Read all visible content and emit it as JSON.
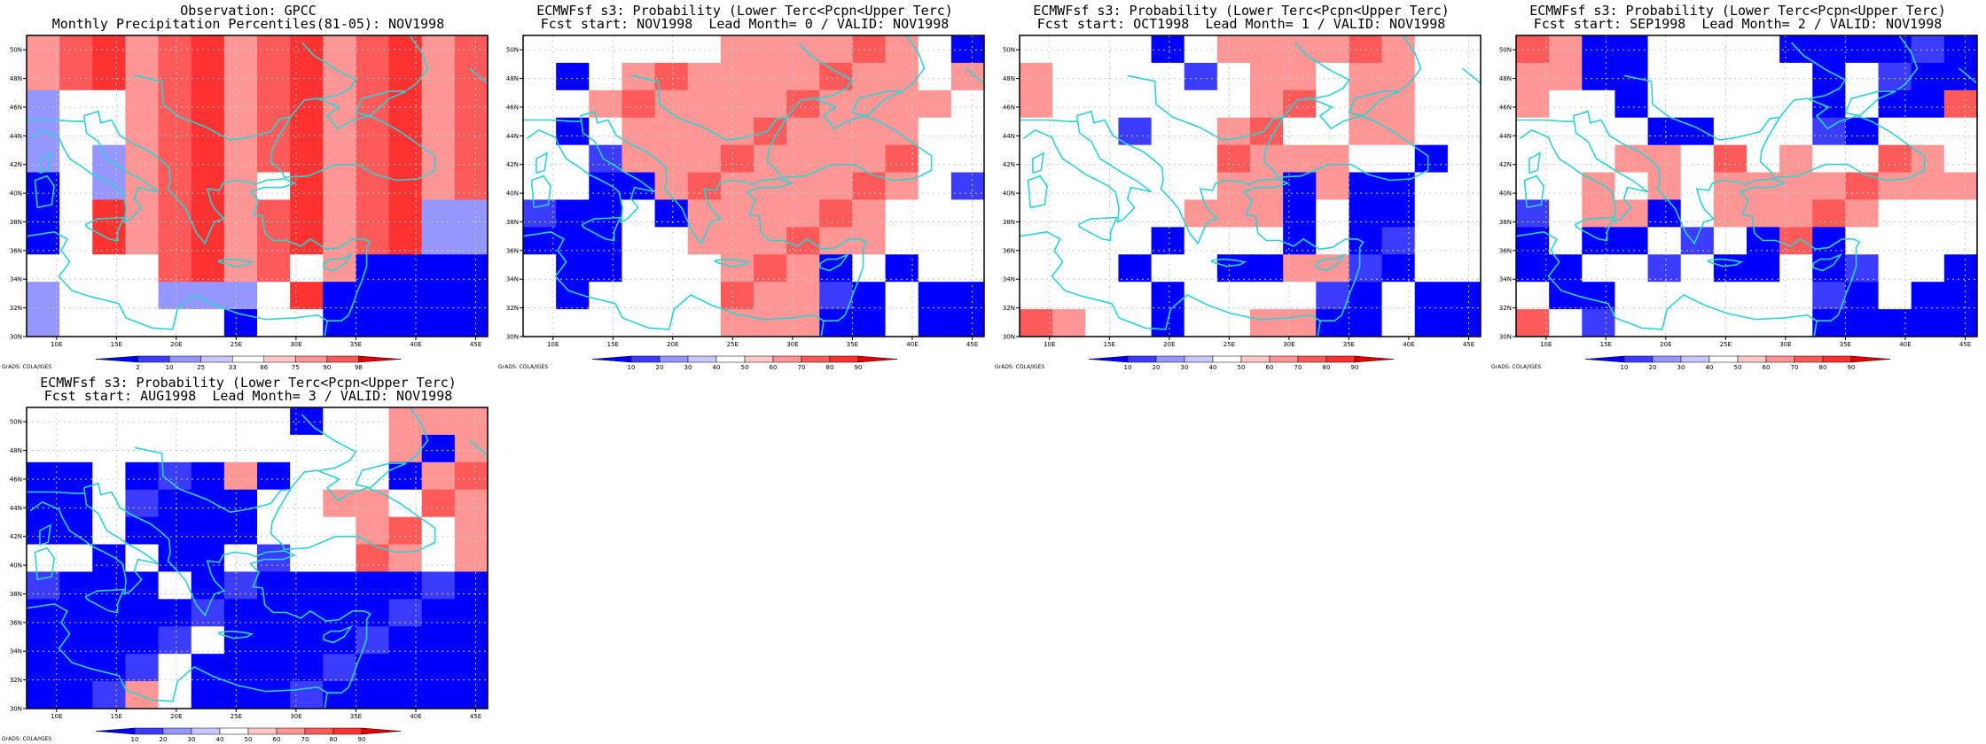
{
  "colors": {
    "blue3": "#0000ff",
    "blue2": "#3c3cff",
    "blue1": "#9696ff",
    "white": "#ffffff",
    "red1": "#ff9696",
    "red2": "#ff5a5a",
    "red3": "#ff3232",
    "red4": "#e60000",
    "coast": "#2ad4d4",
    "grid": "#c8c8c8"
  },
  "axes": {
    "lon_ticks": [
      "10E",
      "15E",
      "20E",
      "25E",
      "30E",
      "35E",
      "40E",
      "45E"
    ],
    "lat_ticks": [
      "30N",
      "32N",
      "34N",
      "36N",
      "38N",
      "40N",
      "42N",
      "44N",
      "46N",
      "48N",
      "50N"
    ]
  },
  "grads_label": "GrADS: COLA/IGES",
  "panels": [
    {
      "title1": "Observation: GPCC",
      "title2": "Monthly Precipitation Percentiles(81-05): NOV1998",
      "legend_labels": [
        "2",
        "10",
        "25",
        "33",
        "66",
        "75",
        "90",
        "98"
      ],
      "legend_kind": "obs",
      "grid": [
        "RRRRRRRRRRRRRR",
        "RRRRRRRRRRRRRR",
        "bWWRRRRRRRRRRR",
        "bWWRRRRRRRRRRR",
        "bWbRRRRRRRRRRR",
        "BWbRRRRWRRRRRR",
        "BWRRRRRRRRRRbb",
        "BWRRRRRRRRRRbb",
        "WWWWRRRRWRBBBB",
        "bWWWbbbWRBBBBB",
        "bWWWWWBWWBBBBB"
      ]
    },
    {
      "title1": "ECMWFsf s3: Probability (Lower Terc<Pcpn<Upper Terc)",
      "title2": "Fcst start: NOV1998  Lead Month= 0 / VALID: NOV1998",
      "legend_labels": [
        "10",
        "20",
        "30",
        "40",
        "50",
        "60",
        "70",
        "80",
        "90"
      ],
      "legend_kind": "prob",
      "grid": [
        "WWWWWWRRRRRRWB",
        "WBWRRRRRRRRRWR",
        "WWRRRRRRRRRRRW",
        "WBWRRRRRRRRRWW",
        "WWBRRRRRRRRRWW",
        "WWBBRRRRRRRRWB",
        "BBBWBRRRRRRWWW",
        "BBBWWRRRRRRWWW",
        "WBBWWWRRRBWBWW",
        "WBWWWWRRRBBWBB",
        "WWWWWWRRRBBWBB"
      ]
    },
    {
      "title1": "ECMWFsf s3: Probability (Lower Terc<Pcpn<Upper Terc)",
      "title2": "Fcst start: OCT1998  Lead Month= 1 / VALID: NOV1998",
      "legend_labels": [
        "10",
        "20",
        "30",
        "40",
        "50",
        "60",
        "70",
        "80",
        "90"
      ],
      "legend_kind": "prob",
      "grid": [
        "WWWWBWRRRRRRWW",
        "RWWWWBWRRWRRWW",
        "RWWWWWWRRWRRWW",
        "WWWBWWRRWWRRWW",
        "WWWWWWRRRRWWBW",
        "WWWWWWRRBRBBWW",
        "WWWWWRRRBWBBWW",
        "WWWWBWWWBWBBWW",
        "WWWBWWBBRRBBWW",
        "WWWWBWWWWBBWBB",
        "RRWWBWWRRBBWBB"
      ]
    },
    {
      "title1": "ECMWFsf s3: Probability (Lower Terc<Pcpn<Upper Terc)",
      "title2": "Fcst start: SEP1998  Lead Month= 2 / VALID: NOV1998",
      "legend_labels": [
        "10",
        "20",
        "30",
        "40",
        "50",
        "60",
        "70",
        "80",
        "90"
      ],
      "legend_kind": "prob",
      "grid": [
        "RRBBWWWWBBBBBB",
        "RRBBWWWWWBWBBB",
        "RWWBWWWWWBWBBR",
        "WWWWBBWWWBBWWW",
        "WWWRRWRWRWWRRW",
        "WWRWRWRRRRRRRR",
        "BWRRBWRRRRRWWW",
        "BWBBWBWBRBWWWW",
        "BBWWBWBBWBBWWB",
        "WBBWWWWWWBBWBB",
        "RWBWWWWWWBBBBB"
      ]
    },
    {
      "title1": "ECMWFsf s3: Probability (Lower Terc<Pcpn<Upper Terc)",
      "title2": "Fcst start: AUG1998  Lead Month= 3 / VALID: NOV1998",
      "legend_labels": [
        "10",
        "20",
        "30",
        "40",
        "50",
        "60",
        "70",
        "80",
        "90"
      ],
      "legend_kind": "prob",
      "grid": [
        "WWWWWWWWBWWRRR",
        "WWWWWWWWWWWRBR",
        "BBWBBBRBWWWBRR",
        "BBWBBBBWWRRWRR",
        "BBWBBBBWWWRRWR",
        "WWBWBBWBWWRRWR",
        "BBBBWBBBBBBBBB",
        "BBBBBBBBBBBBBB",
        "BBBBBWBBBBBBBB",
        "BBBBWBBBBBBBBB",
        "BBBRWBBBBBBBBB"
      ]
    }
  ]
}
